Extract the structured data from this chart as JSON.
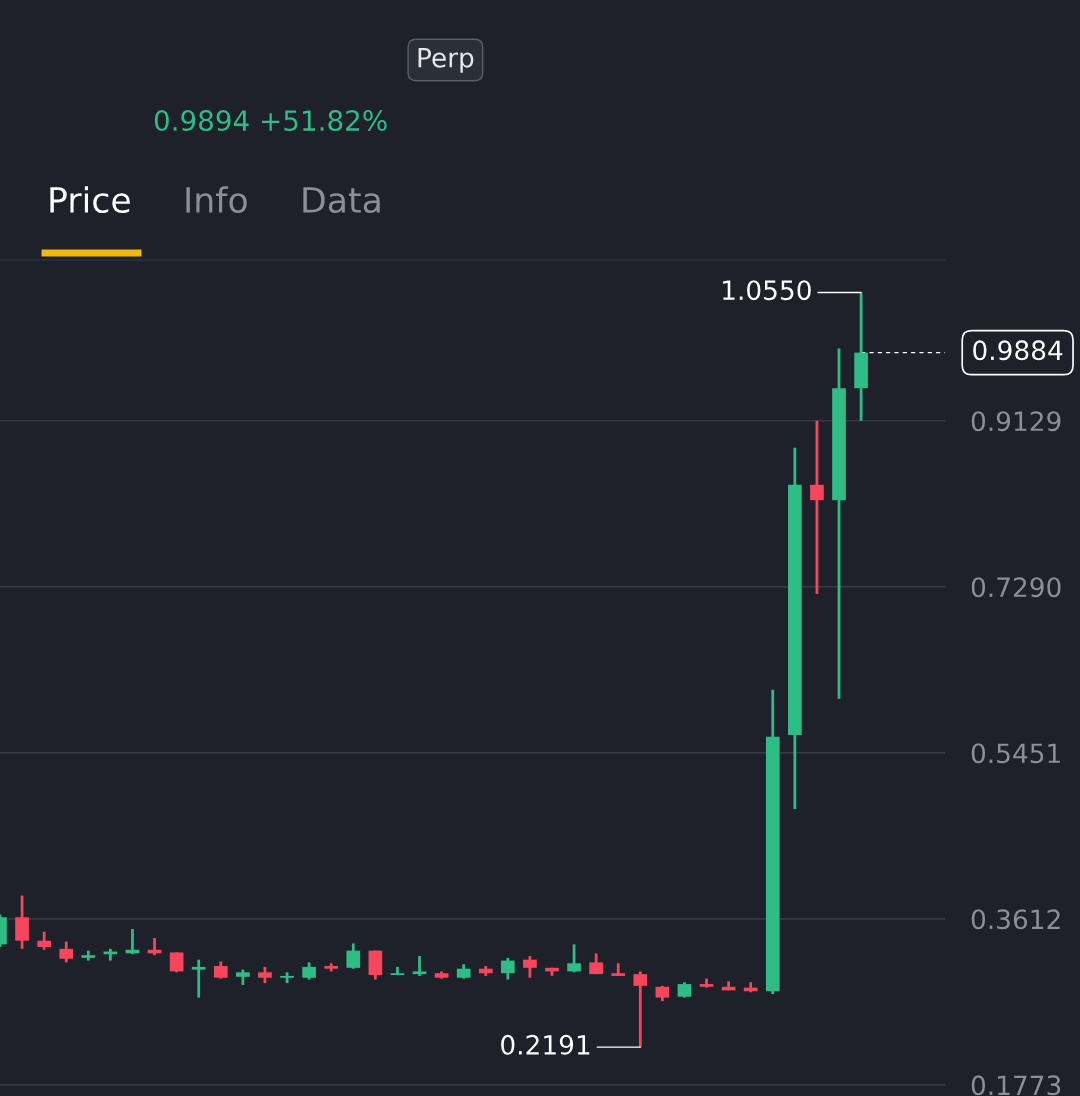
{
  "chart_data": {
    "type": "candlestick",
    "categories": [
      null,
      null,
      null,
      null,
      null,
      null,
      null,
      null,
      null,
      null,
      null,
      null,
      null,
      null,
      null,
      null,
      null,
      null,
      null,
      null,
      null,
      null,
      null,
      null,
      null,
      null,
      null,
      null,
      null,
      null,
      null,
      null,
      null,
      null,
      null,
      null,
      null,
      null,
      null,
      null
    ],
    "ohlc": [
      [
        0.333,
        0.366,
        0.33,
        0.363
      ],
      [
        0.363,
        0.387,
        0.328,
        0.337
      ],
      [
        0.337,
        0.347,
        0.327,
        0.33
      ],
      [
        0.328,
        0.336,
        0.313,
        0.317
      ],
      [
        0.318,
        0.326,
        0.315,
        0.321
      ],
      [
        0.322,
        0.328,
        0.315,
        0.325
      ],
      [
        0.323,
        0.35,
        0.322,
        0.327
      ],
      [
        0.327,
        0.34,
        0.321,
        0.323
      ],
      [
        0.324,
        0.324,
        0.302,
        0.303
      ],
      [
        0.305,
        0.316,
        0.274,
        0.308
      ],
      [
        0.309,
        0.314,
        0.295,
        0.296
      ],
      [
        0.297,
        0.305,
        0.288,
        0.302
      ],
      [
        0.302,
        0.308,
        0.29,
        0.296
      ],
      [
        0.296,
        0.302,
        0.29,
        0.298
      ],
      [
        0.296,
        0.313,
        0.294,
        0.308
      ],
      [
        0.309,
        0.312,
        0.303,
        0.306
      ],
      [
        0.307,
        0.334,
        0.306,
        0.326
      ],
      [
        0.326,
        0.326,
        0.294,
        0.299
      ],
      [
        0.299,
        0.308,
        0.299,
        0.301
      ],
      [
        0.3,
        0.32,
        0.298,
        0.303
      ],
      [
        0.301,
        0.303,
        0.295,
        0.296
      ],
      [
        0.296,
        0.311,
        0.295,
        0.306
      ],
      [
        0.306,
        0.309,
        0.298,
        0.301
      ],
      [
        0.301,
        0.318,
        0.294,
        0.315
      ],
      [
        0.316,
        0.32,
        0.296,
        0.307
      ],
      [
        0.307,
        0.307,
        0.298,
        0.303
      ],
      [
        0.303,
        0.333,
        0.302,
        0.312
      ],
      [
        0.313,
        0.323,
        0.3,
        0.3
      ],
      [
        0.301,
        0.312,
        0.298,
        0.298
      ],
      [
        0.3,
        0.303,
        0.2191,
        0.287
      ],
      [
        0.286,
        0.287,
        0.27,
        0.274
      ],
      [
        0.275,
        0.291,
        0.274,
        0.289
      ],
      [
        0.289,
        0.295,
        0.285,
        0.286
      ],
      [
        0.286,
        0.292,
        0.282,
        0.282
      ],
      [
        0.285,
        0.291,
        0.28,
        0.281
      ],
      [
        0.281,
        0.615,
        0.278,
        0.563
      ],
      [
        0.565,
        0.883,
        0.483,
        0.842
      ],
      [
        0.842,
        0.913,
        0.721,
        0.825
      ],
      [
        0.825,
        0.993,
        0.605,
        0.949
      ],
      [
        0.949,
        1.055,
        0.913,
        0.9884
      ]
    ],
    "colors": [
      "#2ebd85",
      "#f6465d",
      "#f6465d",
      "#f6465d",
      "#2ebd85",
      "#2ebd85",
      "#2ebd85",
      "#f6465d",
      "#f6465d",
      "#2ebd85",
      "#f6465d",
      "#2ebd85",
      "#f6465d",
      "#2ebd85",
      "#2ebd85",
      "#f6465d",
      "#2ebd85",
      "#f6465d",
      "#2ebd85",
      "#2ebd85",
      "#f6465d",
      "#2ebd85",
      "#f6465d",
      "#2ebd85",
      "#f6465d",
      "#f6465d",
      "#2ebd85",
      "#f6465d",
      "#f6465d",
      "#f6465d",
      "#f6465d",
      "#2ebd85",
      "#f6465d",
      "#f6465d",
      "#f6465d",
      "#2ebd85",
      "#2ebd85",
      "#f6465d",
      "#2ebd85",
      "#2ebd85"
    ],
    "ylim": [
      0.165,
      1.091
    ],
    "yticks": [
      {
        "value": 0.1773,
        "label": "0.1773"
      },
      {
        "value": 0.3612,
        "label": "0.3612"
      },
      {
        "value": 0.5451,
        "label": "0.5451"
      },
      {
        "value": 0.729,
        "label": "0.7290"
      },
      {
        "value": 0.9129,
        "label": "0.9129"
      }
    ],
    "grid": "y",
    "ref_lines": [
      {
        "axis": "y",
        "value": 0.9884,
        "label": "0.9884",
        "color": "#ffffff",
        "line_style": "dashed"
      }
    ],
    "annotations": [
      "1.0550",
      "0.2191",
      "0.9894 +51.82%",
      "Perp",
      "Price",
      "Info",
      "Data"
    ]
  }
}
